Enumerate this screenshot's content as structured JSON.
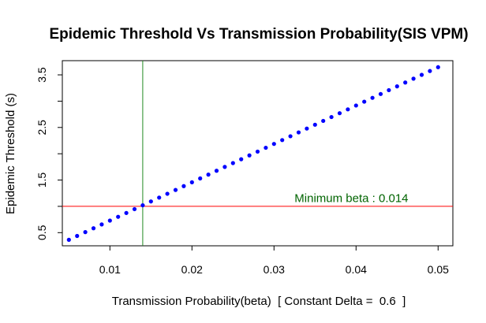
{
  "chart_data": {
    "type": "scatter",
    "title": "Epidemic Threshold Vs Transmission Probability(SIS VPM)",
    "xlabel": "Transmission Probability(beta)  [ Constant Delta =  0.6  ]",
    "ylabel": "Epidemic Threshold (s)",
    "xlim": [
      0.0042,
      0.0518
    ],
    "ylim": [
      0.25,
      3.77
    ],
    "xticks": [
      0.01,
      0.02,
      0.03,
      0.04,
      0.05
    ],
    "xtick_labels": [
      "0.01",
      "0.02",
      "0.03",
      "0.04",
      "0.05"
    ],
    "yticks": [
      0.5,
      1.0,
      1.5,
      2.0,
      2.5,
      3.0,
      3.5
    ],
    "ytick_labels": [
      "0.5",
      "",
      "1.5",
      "",
      "2.5",
      "",
      "3.5"
    ],
    "grid": false,
    "series": [
      {
        "color": "#0000ff",
        "x": [
          0.005,
          0.006,
          0.007,
          0.008,
          0.009,
          0.01,
          0.011,
          0.012,
          0.013,
          0.014,
          0.015,
          0.016,
          0.017,
          0.018,
          0.019,
          0.02,
          0.021,
          0.022,
          0.023,
          0.024,
          0.025,
          0.026,
          0.027,
          0.028,
          0.029,
          0.03,
          0.031,
          0.032,
          0.033,
          0.034,
          0.035,
          0.036,
          0.037,
          0.038,
          0.039,
          0.04,
          0.041,
          0.042,
          0.043,
          0.044,
          0.045,
          0.046,
          0.047,
          0.048,
          0.049,
          0.05
        ],
        "y": [
          0.364,
          0.437,
          0.51,
          0.583,
          0.656,
          0.729,
          0.801,
          0.874,
          0.947,
          1.02,
          1.093,
          1.166,
          1.239,
          1.312,
          1.385,
          1.458,
          1.531,
          1.604,
          1.677,
          1.75,
          1.823,
          1.896,
          1.969,
          2.041,
          2.114,
          2.187,
          2.26,
          2.333,
          2.406,
          2.479,
          2.552,
          2.625,
          2.698,
          2.771,
          2.844,
          2.917,
          2.99,
          3.063,
          3.136,
          3.209,
          3.281,
          3.354,
          3.427,
          3.5,
          3.573,
          3.646
        ]
      }
    ],
    "reference_lines": [
      {
        "orientation": "vertical",
        "value": 0.014,
        "color": "#228b22"
      },
      {
        "orientation": "horizontal",
        "value": 1.0,
        "color": "#ff0000"
      }
    ],
    "annotations": [
      {
        "text": "Minimum beta : 0.014",
        "x": 0.0325,
        "y": 1.08,
        "color": "#006400"
      }
    ]
  }
}
